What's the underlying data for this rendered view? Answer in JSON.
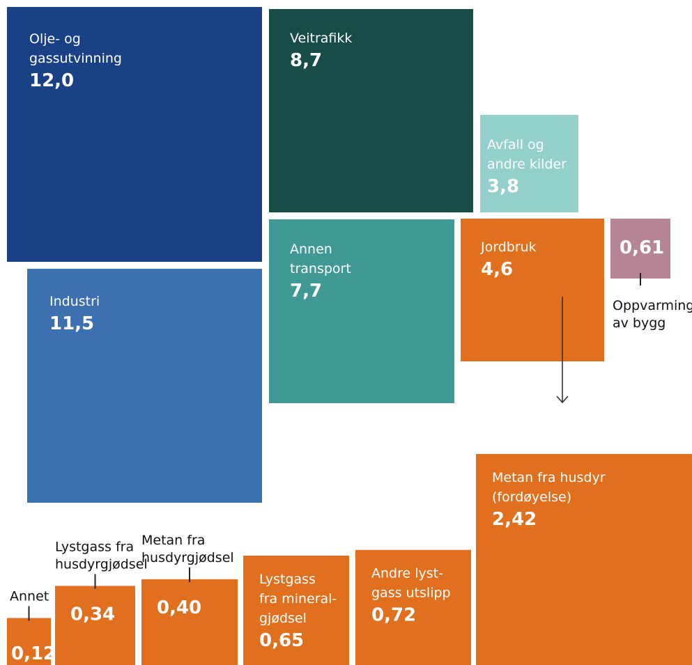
{
  "chart_data": [
    {
      "type": "treemap",
      "values_shown_as": "area",
      "items": [
        {
          "label": "Olje- og gassutvinning",
          "label_lines": [
            "Olje- og",
            "gassutvinning"
          ],
          "value": 12.0,
          "value_text": "12,0",
          "color": "#1a4185"
        },
        {
          "label": "Veitrafikk",
          "label_lines": [
            "Veitrafikk"
          ],
          "value": 8.7,
          "value_text": "8,7",
          "color": "#174c47"
        },
        {
          "label": "Avfall og andre kilder",
          "label_lines": [
            "Avfall og",
            "andre kilder"
          ],
          "value": 3.8,
          "value_text": "3,8",
          "color": "#93cfcb"
        },
        {
          "label": "Industri",
          "label_lines": [
            "Industri"
          ],
          "value": 11.5,
          "value_text": "11,5",
          "color": "#3c70b1"
        },
        {
          "label": "Annen transport",
          "label_lines": [
            "Annen",
            "transport"
          ],
          "value": 7.7,
          "value_text": "7,7",
          "color": "#419995"
        },
        {
          "label": "Jordbruk",
          "label_lines": [
            "Jordbruk"
          ],
          "value": 4.6,
          "value_text": "4,6",
          "color": "#e0701e"
        },
        {
          "label": "Oppvarming av bygg",
          "label_lines": [
            "Oppvarming",
            "av bygg"
          ],
          "value": 0.61,
          "value_text": "0,61",
          "color": "#b58596"
        }
      ]
    },
    {
      "type": "bar",
      "parent": "Jordbruk",
      "color": "#e0701e",
      "categories": [
        "Annet",
        "Lystgass fra husdyrgjødsel",
        "Metan fra husdyrgjødsel",
        "Lystgass fra mineralgjødsel",
        "Andre lystgass utslipp",
        "Metan fra husdyr (fordøyelse)"
      ],
      "category_lines": [
        [
          "Annet"
        ],
        [
          "Lystgass fra",
          "husdyrgjødsel"
        ],
        [
          "Metan fra",
          "husdyrgjødsel"
        ],
        [
          "Lystgass",
          "fra mineral-",
          "gjødsel"
        ],
        [
          "Andre lyst-",
          "gass utslipp"
        ],
        [
          "Metan fra husdyr",
          "(fordøyelse)"
        ]
      ],
      "values": [
        0.12,
        0.34,
        0.4,
        0.65,
        0.72,
        2.42
      ],
      "value_texts": [
        "0,12",
        "0,34",
        "0,40",
        "0,65",
        "0,72",
        "2,42"
      ]
    }
  ]
}
